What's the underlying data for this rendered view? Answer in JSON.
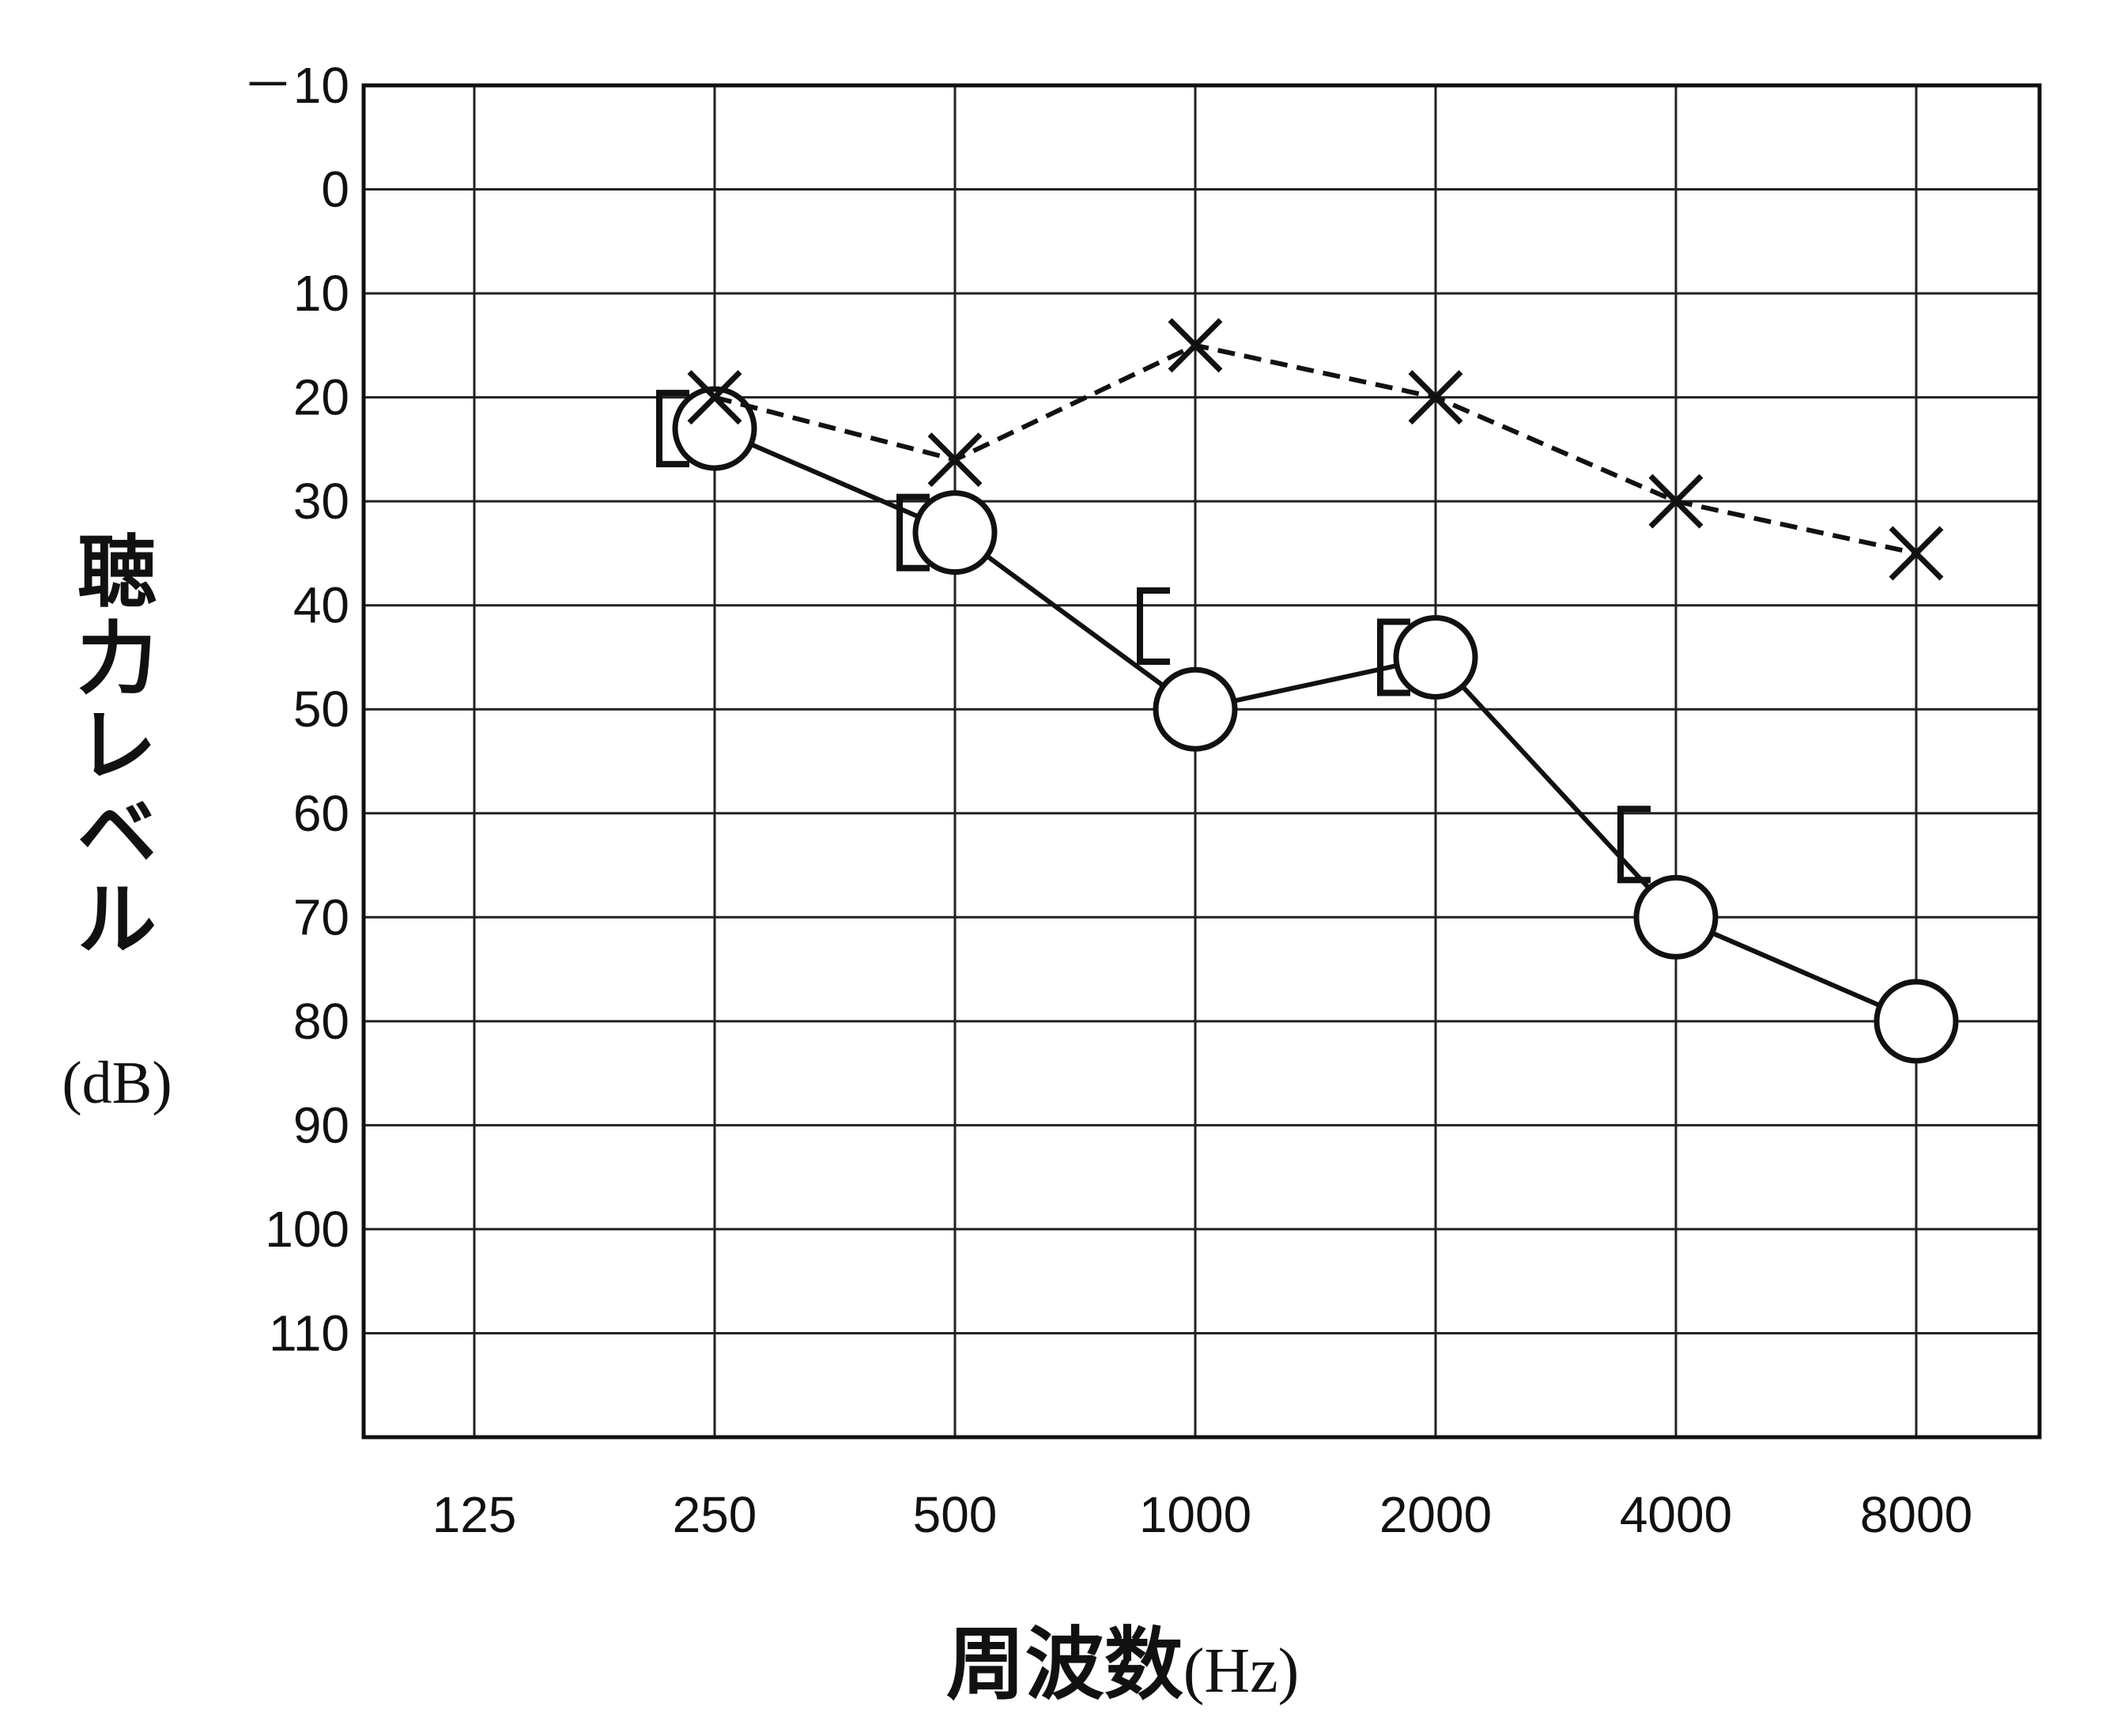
{
  "chart_data": {
    "type": "line",
    "xlabel": "周波数",
    "xlabel_unit": "(Hz)",
    "ylabel": "聴力レベル",
    "ylabel_unit": "(dB)",
    "categories": [
      "125",
      "250",
      "500",
      "1000",
      "2000",
      "4000",
      "8000"
    ],
    "yticks": [
      "－10",
      "0",
      "10",
      "20",
      "30",
      "40",
      "50",
      "60",
      "70",
      "80",
      "90",
      "100",
      "110"
    ],
    "ylim": [
      -10,
      120
    ],
    "y_inverted": true,
    "grid": true,
    "series": [
      {
        "marker": "circle",
        "line_style": "solid",
        "x": [
          "250",
          "500",
          "1000",
          "2000",
          "4000",
          "8000"
        ],
        "values": [
          23,
          33,
          50,
          45,
          70,
          80
        ]
      },
      {
        "marker": "cross",
        "line_style": "dashed",
        "x": [
          "250",
          "500",
          "1000",
          "2000",
          "4000",
          "8000"
        ],
        "values": [
          20,
          26,
          15,
          20,
          30,
          35
        ]
      },
      {
        "marker": "bracket",
        "line_style": "none",
        "x": [
          "250",
          "500",
          "1000",
          "2000",
          "4000"
        ],
        "values": [
          23,
          33,
          42,
          45,
          63
        ]
      }
    ],
    "colors": {
      "ink": "#111111",
      "grid": "#222222"
    }
  }
}
